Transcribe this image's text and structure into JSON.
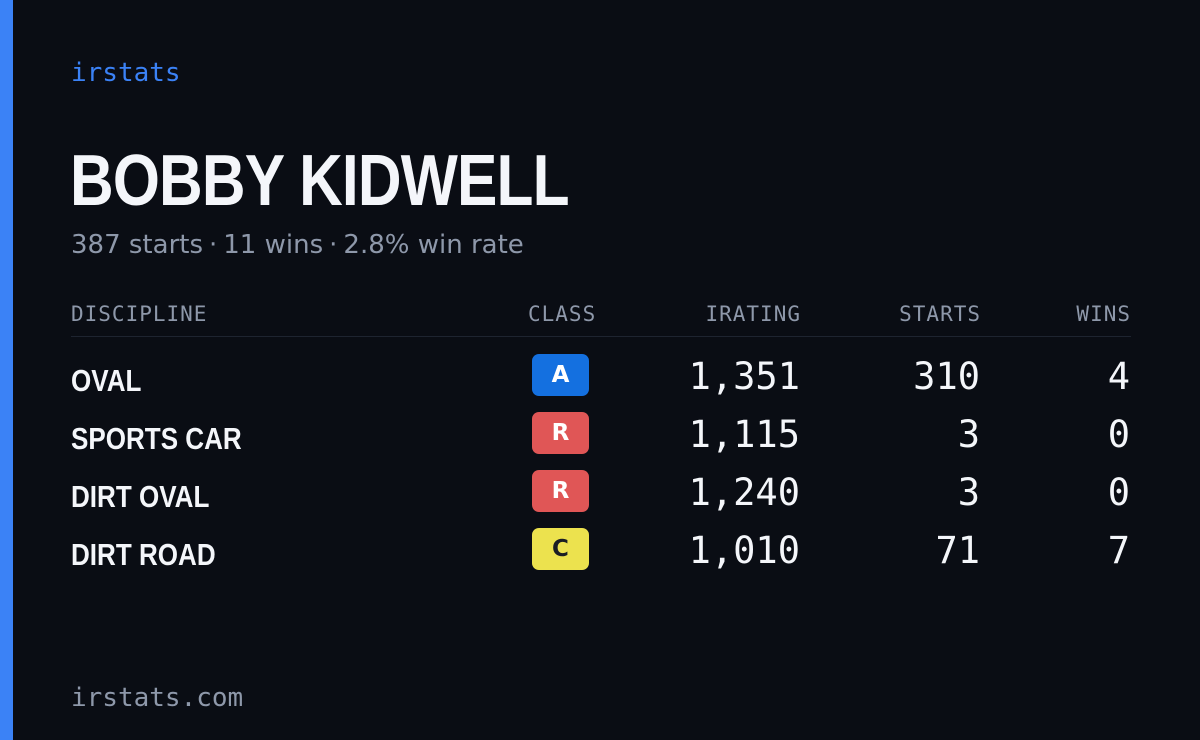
{
  "brand": "irstats",
  "driver": {
    "name": "BOBBY KIDWELL",
    "starts": "387 starts",
    "wins": "11 wins",
    "win_rate": "2.8% win rate",
    "separator": "·"
  },
  "table": {
    "headers": {
      "discipline": "DISCIPLINE",
      "class": "CLASS",
      "irating": "IRATING",
      "starts": "STARTS",
      "wins": "WINS"
    },
    "rows": [
      {
        "discipline": "OVAL",
        "class": "A",
        "class_color": "#1470e0",
        "irating": "1,351",
        "starts": "310",
        "wins": "4"
      },
      {
        "discipline": "SPORTS CAR",
        "class": "R",
        "class_color": "#e05656",
        "irating": "1,115",
        "starts": "3",
        "wins": "0"
      },
      {
        "discipline": "DIRT OVAL",
        "class": "R",
        "class_color": "#e05656",
        "irating": "1,240",
        "starts": "3",
        "wins": "0"
      },
      {
        "discipline": "DIRT ROAD",
        "class": "C",
        "class_color": "#ece24e",
        "irating": "1,010",
        "starts": "71",
        "wins": "7"
      }
    ]
  },
  "footer": {
    "url": "irstats.com"
  },
  "colors": {
    "background": "#0a0d14",
    "accent": "#3b82f6",
    "text_primary": "#f4f6fa",
    "text_muted": "#8e98aa"
  }
}
